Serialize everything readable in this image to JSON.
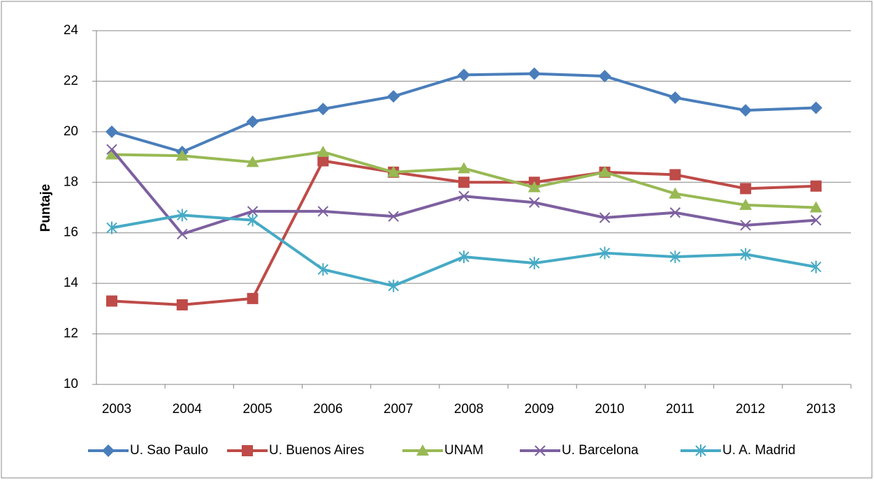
{
  "chart_data": {
    "type": "line",
    "y_label": "Puntaje",
    "categories": [
      "2003",
      "2004",
      "2005",
      "2006",
      "2007",
      "2008",
      "2009",
      "2010",
      "2011",
      "2012",
      "2013"
    ],
    "ylim": [
      10,
      24
    ],
    "yticks": [
      10,
      12,
      14,
      16,
      18,
      20,
      22,
      24
    ],
    "grid": true,
    "legend": "bottom",
    "series": [
      {
        "name": "U. Sao Paulo",
        "color": "#4a7ebb",
        "marker": "diamond",
        "values": [
          20.0,
          19.2,
          20.4,
          20.9,
          21.4,
          22.25,
          22.3,
          22.2,
          21.35,
          20.85,
          20.95
        ]
      },
      {
        "name": "U. Buenos Aires",
        "color": "#be4b48",
        "marker": "square",
        "values": [
          13.3,
          13.15,
          13.4,
          18.85,
          18.4,
          18.0,
          18.0,
          18.4,
          18.3,
          17.75,
          17.85
        ]
      },
      {
        "name": "UNAM",
        "color": "#98b954",
        "marker": "triangle",
        "values": [
          19.1,
          19.05,
          18.8,
          19.2,
          18.4,
          18.55,
          17.8,
          18.4,
          17.55,
          17.1,
          17.0
        ]
      },
      {
        "name": "U. Barcelona",
        "color": "#7d60a0",
        "marker": "x",
        "values": [
          19.3,
          15.95,
          16.85,
          16.85,
          16.65,
          17.45,
          17.2,
          16.6,
          16.8,
          16.3,
          16.5
        ]
      },
      {
        "name": "U. A. Madrid",
        "color": "#46aac5",
        "marker": "star",
        "values": [
          16.2,
          16.7,
          16.5,
          14.55,
          13.9,
          15.05,
          14.8,
          15.2,
          15.05,
          15.15,
          14.65
        ]
      }
    ]
  }
}
